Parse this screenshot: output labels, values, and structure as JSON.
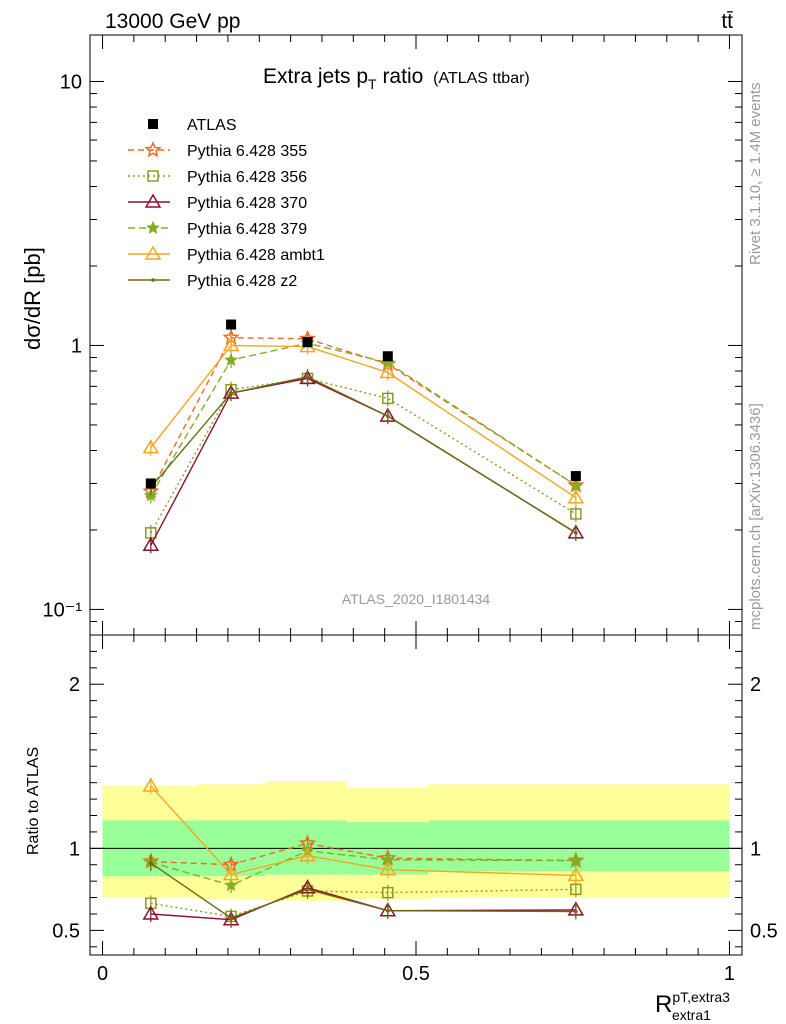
{
  "header": {
    "energy_label": "13000 GeV pp",
    "process_label": "tt̄"
  },
  "side_labels": {
    "rivet": "Rivet 3.1.10, ≥ 1.4M events",
    "mcplots": "mcplots.cern.ch [arXiv:1306.3436]"
  },
  "analysis_id": "ATLAS_2020_I1801434",
  "chart_data": {
    "type": "line",
    "title_main": "Extra jets p",
    "title_sub": "T",
    "title_rest": " ratio",
    "title_note": "(ATLAS ttbar)",
    "ylabel_upper": "dσ/dR [pb]",
    "ylabel_lower": "Ratio to ATLAS",
    "xlabel_main": "R",
    "xlabel_sup": "pT,extra3",
    "xlabel_sub": "extra1",
    "x": [
      0.077,
      0.205,
      0.327,
      0.455,
      0.755
    ],
    "x_bins": [
      [
        0.0,
        0.15
      ],
      [
        0.15,
        0.26
      ],
      [
        0.26,
        0.39
      ],
      [
        0.39,
        0.52
      ],
      [
        0.52,
        1.0
      ]
    ],
    "upper_ylim": [
      0.08,
      15
    ],
    "upper_ticks": {
      "labels": [
        "10⁻¹",
        "1",
        "10"
      ],
      "values": [
        0.1,
        1,
        10
      ]
    },
    "lower_ylim": [
      0.35,
      2.3
    ],
    "lower_ticks": {
      "labels": [
        "0.5",
        "1",
        "2"
      ],
      "values": [
        0.5,
        1,
        2
      ]
    },
    "xlim": [
      -0.02,
      1.02
    ],
    "x_ticks": {
      "labels": [
        "0",
        "0.5",
        "1"
      ],
      "values": [
        0,
        0.5,
        1
      ]
    },
    "data": {
      "name": "ATLAS",
      "values": [
        0.3,
        1.2,
        1.03,
        0.91,
        0.32
      ]
    },
    "band_inner": [
      [
        0.83,
        1.17
      ],
      [
        0.83,
        1.17
      ],
      [
        0.84,
        1.17
      ],
      [
        0.84,
        1.16
      ],
      [
        0.86,
        1.17
      ]
    ],
    "band_outer": [
      [
        0.7,
        1.38
      ],
      [
        0.69,
        1.39
      ],
      [
        0.68,
        1.41
      ],
      [
        0.69,
        1.37
      ],
      [
        0.7,
        1.39
      ]
    ],
    "series": [
      {
        "name": "Pythia 6.428 355",
        "color": "#ee6a20",
        "dash": "6,4",
        "marker": "star-open",
        "values": [
          0.28,
          1.07,
          1.06,
          0.85,
          0.295
        ],
        "ratio": [
          0.92,
          0.9,
          1.03,
          0.94,
          0.925
        ]
      },
      {
        "name": "Pythia 6.428 356",
        "color": "#8a9a20",
        "dash": "2,3",
        "marker": "square-open",
        "values": [
          0.195,
          0.68,
          0.75,
          0.63,
          0.23
        ],
        "ratio": [
          0.665,
          0.585,
          0.74,
          0.73,
          0.75
        ]
      },
      {
        "name": "Pythia 6.428 370",
        "color": "#8a1030",
        "dash": "",
        "marker": "triangle-open",
        "values": [
          0.175,
          0.66,
          0.75,
          0.54,
          0.195
        ],
        "ratio": [
          0.6,
          0.565,
          0.76,
          0.62,
          0.625
        ]
      },
      {
        "name": "Pythia 6.428 379",
        "color": "#80b020",
        "dash": "7,4",
        "marker": "star-filled",
        "values": [
          0.27,
          0.88,
          1.02,
          0.86,
          0.295
        ],
        "ratio": [
          0.915,
          0.775,
          0.985,
          0.93,
          0.925
        ]
      },
      {
        "name": "Pythia 6.428 ambt1",
        "color": "#f5a623",
        "dash": "",
        "marker": "triangle-open",
        "values": [
          0.41,
          1.0,
          0.99,
          0.79,
          0.265
        ],
        "ratio": [
          1.38,
          0.84,
          0.955,
          0.87,
          0.835
        ]
      },
      {
        "name": "Pythia 6.428 z2",
        "color": "#6b6b10",
        "dash": "",
        "marker": "dot",
        "values": [
          0.29,
          0.66,
          0.76,
          0.54,
          0.195
        ],
        "ratio": [
          0.91,
          0.575,
          0.75,
          0.62,
          0.615
        ]
      }
    ]
  }
}
